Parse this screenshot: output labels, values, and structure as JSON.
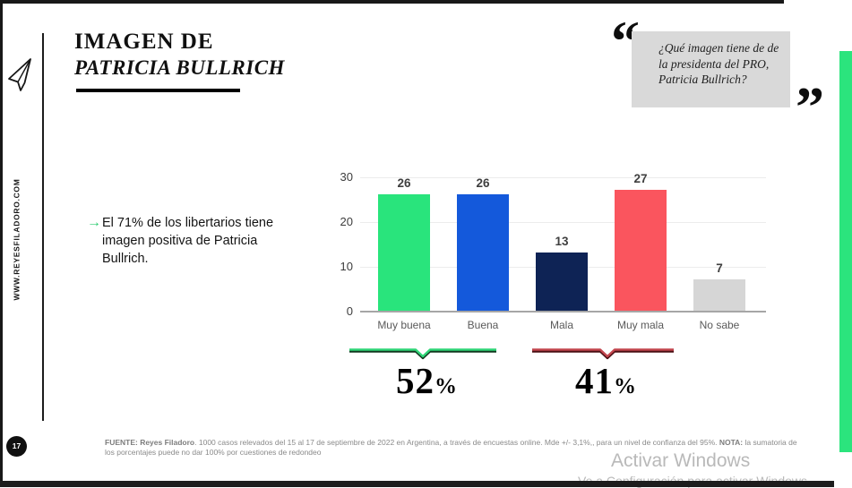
{
  "header": {
    "title_line1": "IMAGEN DE",
    "title_line2": "PATRICIA BULLRICH"
  },
  "sidebar": {
    "website": "WWW.REYESFILADORO.COM",
    "page_number": "17"
  },
  "quote_box": {
    "open_mark": "“",
    "close_mark": "”",
    "text": "¿Qué imagen tiene de de la presidenta del PRO, Patricia Bullrich?"
  },
  "insight": {
    "arrow": "→",
    "text": "El 71% de los libertarios tiene imagen positiva de Patricia Bullrich."
  },
  "chart_data": {
    "type": "bar",
    "title": "",
    "categories": [
      "Muy buena",
      "Buena",
      "Mala",
      "Muy mala",
      "No sabe"
    ],
    "values": [
      26,
      26,
      13,
      27,
      7
    ],
    "bar_colors": [
      "#29e47c",
      "#1459db",
      "#0e2355",
      "#fa555e",
      "#d6d6d6"
    ],
    "yticks": [
      0,
      10,
      20,
      30
    ],
    "ylim": [
      0,
      30
    ],
    "grid": true,
    "legend": false,
    "xlabel": "",
    "ylabel": "",
    "annotations": [
      {
        "value": "52",
        "suffix": "%",
        "covers": [
          "Muy buena",
          "Buena"
        ],
        "brace_color": "#2fd577"
      },
      {
        "value": "41",
        "suffix": "%",
        "covers": [
          "Mala",
          "Muy mala"
        ],
        "brace_color": "#c2454d"
      }
    ]
  },
  "footer": {
    "source_label": "FUENTE: Reyes Filadoro",
    "source_text": ". 1000 casos relevados del 15 al 17 de septiembre de 2022 en Argentina, a través de encuestas online. Mde +/- 3,1%,, para un nivel de confianza del 95%. ",
    "nota_label": "NOTA:",
    "nota_text": " la sumatoria de los porcentajes puede no dar 100% por cuestiones de redondeo"
  },
  "watermark": {
    "line1": "Activar Windows",
    "line2": "Ve a Configuración para activar Windows"
  },
  "theme": {
    "accent_green": "#29e47c",
    "accent_blue": "#1459db",
    "accent_navy": "#0e2355",
    "accent_red": "#fa555e",
    "neutral_gray": "#d6d6d6",
    "quote_box_bg": "#d9d9d9"
  }
}
